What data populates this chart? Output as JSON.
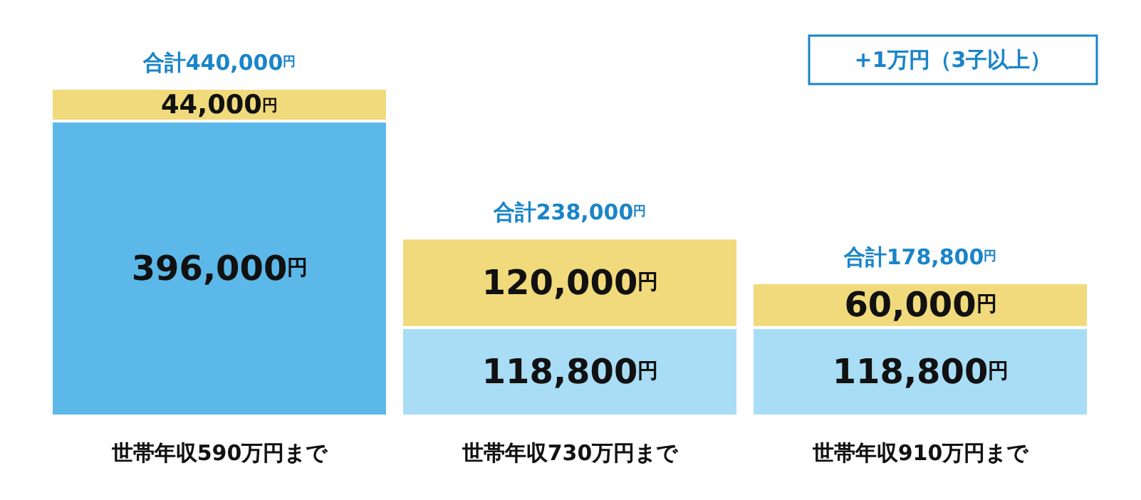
{
  "chart_data": {
    "type": "bar",
    "stacked": true,
    "categories": [
      "世帯年収590万円まで",
      "世帯年収730万円まで",
      "世帯年収910万円まで"
    ],
    "series": [
      {
        "colors": [
          "#5cb8e8",
          "#a9ddf6",
          "#a9ddf6"
        ],
        "values": [
          396000,
          118800,
          118800
        ],
        "value_labels": [
          "396,000円",
          "118,800円",
          "118,800円"
        ]
      },
      {
        "color": "#f1da7b",
        "values": [
          44000,
          120000,
          60000
        ],
        "value_labels": [
          "44,000円",
          "120,000円",
          "60,000円"
        ]
      }
    ],
    "totals": [
      "合計440,000円",
      "合計238,000円",
      "合計178,800円"
    ],
    "annotations": [
      "+1万円（3子以上）"
    ]
  }
}
